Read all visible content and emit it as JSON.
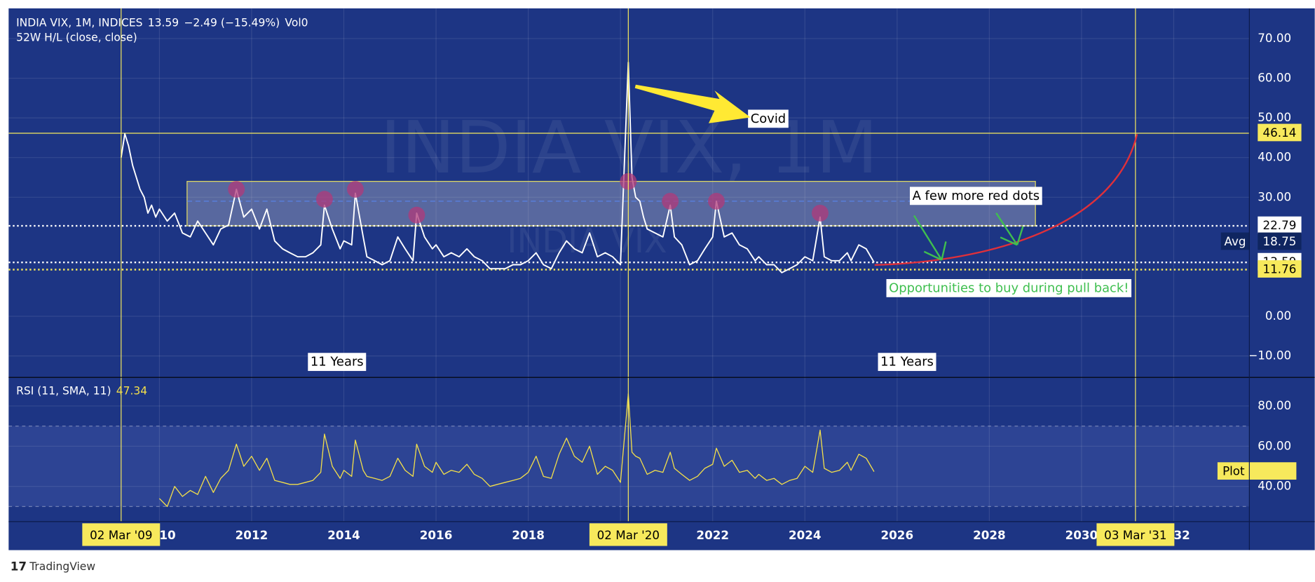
{
  "chart_data": [
    {
      "type": "line",
      "title": "INDIA VIX, 1M, INDICES",
      "last": "13.59",
      "change": "−2.49 (−15.49%)",
      "volume": "Vol0",
      "indicator": "52W H/L (close, close)",
      "watermark": "INDIA VIX, 1M",
      "watermark_small": "INDIA VIX",
      "xlim": [
        2006.73,
        2033.64
      ],
      "xticks": [
        2010,
        2012,
        2014,
        2016,
        2018,
        2020,
        2022,
        2024,
        2026,
        2028,
        2030,
        2032
      ],
      "ylim": [
        -15.4,
        77.6
      ],
      "yticks": [
        {
          "value": 70,
          "label": "70.00"
        },
        {
          "value": 60,
          "label": "60.00"
        },
        {
          "value": 50,
          "label": "50.00"
        },
        {
          "value": 40,
          "label": "40.00"
        },
        {
          "value": 30,
          "label": "30.00"
        },
        {
          "value": 0,
          "label": "0.00"
        },
        {
          "value": -10,
          "label": "−10.00"
        }
      ],
      "grid": true,
      "series": [
        {
          "name": "INDIA VIX",
          "color": "#ffffff",
          "x": [
            2009.17,
            2009.25,
            2009.33,
            2009.42,
            2009.5,
            2009.58,
            2009.67,
            2009.75,
            2009.83,
            2009.92,
            2010.0,
            2010.17,
            2010.33,
            2010.5,
            2010.67,
            2010.83,
            2011.0,
            2011.17,
            2011.33,
            2011.5,
            2011.67,
            2011.83,
            2012.0,
            2012.17,
            2012.33,
            2012.5,
            2012.67,
            2012.83,
            2013.0,
            2013.17,
            2013.33,
            2013.5,
            2013.58,
            2013.75,
            2013.92,
            2014.0,
            2014.17,
            2014.25,
            2014.42,
            2014.5,
            2014.67,
            2014.83,
            2015.0,
            2015.17,
            2015.33,
            2015.5,
            2015.58,
            2015.75,
            2015.92,
            2016.0,
            2016.17,
            2016.33,
            2016.5,
            2016.67,
            2016.83,
            2017.0,
            2017.17,
            2017.33,
            2017.5,
            2017.67,
            2017.83,
            2018.0,
            2018.17,
            2018.33,
            2018.5,
            2018.67,
            2018.83,
            2019.0,
            2019.17,
            2019.33,
            2019.5,
            2019.67,
            2019.83,
            2020.0,
            2020.17,
            2020.25,
            2020.33,
            2020.42,
            2020.5,
            2020.58,
            2020.75,
            2020.92,
            2021.0,
            2021.08,
            2021.17,
            2021.33,
            2021.5,
            2021.67,
            2021.83,
            2022.0,
            2022.08,
            2022.25,
            2022.42,
            2022.58,
            2022.75,
            2022.92,
            2023.0,
            2023.17,
            2023.33,
            2023.5,
            2023.67,
            2023.83,
            2024.0,
            2024.17,
            2024.33,
            2024.42,
            2024.58,
            2024.75,
            2024.92,
            2025.0,
            2025.17,
            2025.33,
            2025.5
          ],
          "values": [
            40,
            46,
            43,
            38,
            35,
            32,
            30,
            26,
            28,
            25,
            27,
            24,
            26,
            21,
            20,
            24,
            21,
            18,
            22,
            23,
            32,
            25,
            27,
            22,
            27,
            19,
            17,
            16,
            15,
            15,
            16,
            18,
            28,
            22,
            17,
            19,
            18,
            31,
            20,
            15,
            14,
            13,
            14,
            20,
            17,
            14,
            26,
            20,
            17,
            18,
            15,
            16,
            15,
            17,
            15,
            14,
            12,
            12,
            12,
            13,
            13,
            14,
            16,
            13,
            12,
            16,
            19,
            17,
            16,
            21,
            15,
            16,
            15,
            13,
            64,
            35,
            30,
            29,
            25,
            22,
            21,
            20,
            24,
            28,
            20,
            18,
            13,
            14,
            17,
            20,
            29,
            20,
            21,
            18,
            17,
            14,
            15,
            13,
            13,
            11,
            12,
            13,
            15,
            14,
            25,
            15,
            14,
            14,
            16,
            14,
            18,
            17,
            13.59
          ]
        }
      ],
      "levels": [
        {
          "value": 46.14,
          "color": "#f7e95c",
          "line": "solid"
        },
        {
          "value": 22.79,
          "color": "#ffffff",
          "line": "dotted"
        },
        {
          "name": "Avg",
          "value": 18.75,
          "color": "#0f2560"
        },
        {
          "value": 13.59,
          "color": "#ffffff",
          "line": "dotted"
        },
        {
          "value": 11.76,
          "color": "#f7e95c",
          "line": "dotted"
        }
      ],
      "zone": {
        "x": [
          2010.6,
          2029.0
        ],
        "range": [
          22.79,
          34
        ],
        "mid": 29
      },
      "highlights": {
        "color": "#b03a7a",
        "x": [
          2011.67,
          2013.58,
          2014.25,
          2015.58,
          2020.17,
          2021.08,
          2022.08,
          2024.33
        ],
        "values": [
          32,
          29.5,
          32,
          25.5,
          34,
          29,
          29,
          26
        ]
      },
      "markers": [
        {
          "value": 2009.17,
          "label": "02 Mar '09"
        },
        {
          "value": 2020.17,
          "label": "02 Mar '20"
        },
        {
          "value": 2031.17,
          "label": "03 Mar '31"
        }
      ],
      "annotations": [
        "Covid",
        "A few more red dots",
        "Opportunities to buy during pull back!",
        "11 Years",
        "11 Years"
      ]
    },
    {
      "type": "line",
      "title": "RSI (11, SMA, 11)",
      "last": "47.34",
      "plot_label": "Plot",
      "plot_value": 47.34,
      "ylim": [
        22.5,
        94.2
      ],
      "yticks": [
        {
          "value": 80,
          "label": "80.00"
        },
        {
          "value": 60,
          "label": "60.00"
        },
        {
          "value": 40,
          "label": "40.00"
        }
      ],
      "band": [
        30,
        70
      ],
      "series": [
        {
          "name": "RSI",
          "color": "#f3df4a",
          "x": [
            2010.0,
            2010.17,
            2010.33,
            2010.5,
            2010.67,
            2010.83,
            2011.0,
            2011.17,
            2011.33,
            2011.5,
            2011.67,
            2011.83,
            2012.0,
            2012.17,
            2012.33,
            2012.5,
            2012.67,
            2012.83,
            2013.0,
            2013.17,
            2013.33,
            2013.5,
            2013.58,
            2013.75,
            2013.92,
            2014.0,
            2014.17,
            2014.25,
            2014.42,
            2014.5,
            2014.67,
            2014.83,
            2015.0,
            2015.17,
            2015.33,
            2015.5,
            2015.58,
            2015.75,
            2015.92,
            2016.0,
            2016.17,
            2016.33,
            2016.5,
            2016.67,
            2016.83,
            2017.0,
            2017.17,
            2017.33,
            2017.5,
            2017.67,
            2017.83,
            2018.0,
            2018.17,
            2018.33,
            2018.5,
            2018.67,
            2018.83,
            2019.0,
            2019.17,
            2019.33,
            2019.5,
            2019.67,
            2019.83,
            2020.0,
            2020.17,
            2020.25,
            2020.33,
            2020.42,
            2020.5,
            2020.58,
            2020.75,
            2020.92,
            2021.0,
            2021.08,
            2021.17,
            2021.33,
            2021.5,
            2021.67,
            2021.83,
            2022.0,
            2022.08,
            2022.25,
            2022.42,
            2022.58,
            2022.75,
            2022.92,
            2023.0,
            2023.17,
            2023.33,
            2023.5,
            2023.67,
            2023.83,
            2024.0,
            2024.17,
            2024.33,
            2024.42,
            2024.58,
            2024.75,
            2024.92,
            2025.0,
            2025.17,
            2025.33,
            2025.5
          ],
          "values": [
            34,
            30,
            40,
            35,
            38,
            36,
            45,
            37,
            44,
            48,
            61,
            50,
            55,
            48,
            54,
            43,
            42,
            41,
            41,
            42,
            43,
            47,
            66,
            50,
            44,
            48,
            45,
            63,
            48,
            45,
            44,
            43,
            45,
            54,
            48,
            45,
            61,
            50,
            47,
            52,
            46,
            48,
            47,
            51,
            46,
            44,
            40,
            41,
            42,
            43,
            44,
            47,
            55,
            45,
            44,
            56,
            64,
            55,
            52,
            60,
            46,
            50,
            48,
            42,
            86,
            57,
            55,
            54,
            50,
            46,
            48,
            47,
            52,
            57,
            49,
            46,
            43,
            45,
            49,
            51,
            59,
            50,
            53,
            47,
            48,
            44,
            46,
            43,
            44,
            41,
            43,
            44,
            50,
            47,
            68,
            49,
            47,
            48,
            52,
            48,
            56,
            54,
            47.34
          ]
        }
      ]
    }
  ],
  "brand": "TradingView"
}
